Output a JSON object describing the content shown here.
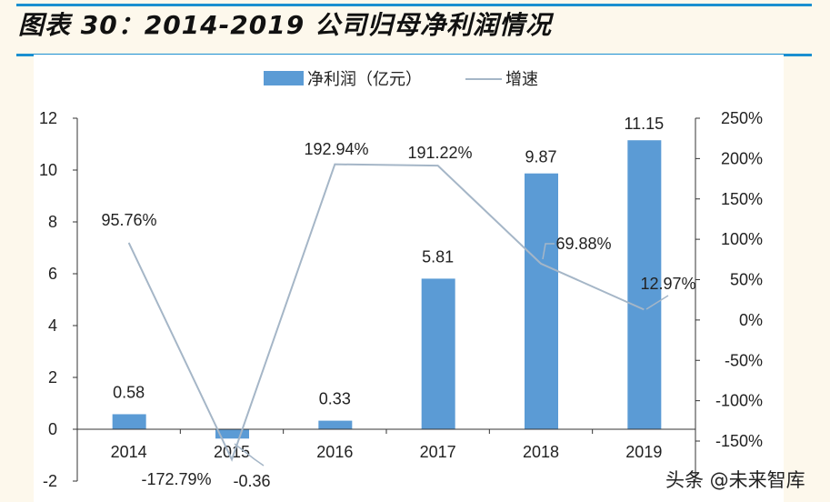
{
  "title": "图表 30：2014-2019 公司归母净利润情况",
  "watermark": "头条 @未来智库",
  "chart_data": {
    "type": "bar+line",
    "categories": [
      "2014",
      "2015",
      "2016",
      "2017",
      "2018",
      "2019"
    ],
    "series": [
      {
        "name": "净利润（亿元）",
        "type": "bar",
        "axis": "left",
        "color": "#5b9bd5",
        "values": [
          0.58,
          -0.36,
          0.33,
          5.81,
          9.87,
          11.15
        ],
        "labels": [
          "0.58",
          "-0.36",
          "0.33",
          "5.81",
          "9.87",
          "11.15"
        ]
      },
      {
        "name": "增速",
        "type": "line",
        "axis": "right",
        "color": "#a5b6c7",
        "values": [
          95.76,
          -172.79,
          192.94,
          191.22,
          69.88,
          12.97
        ],
        "labels": [
          "95.76%",
          "-172.79%",
          "192.94%",
          "191.22%",
          "69.88%",
          "12.97%"
        ]
      }
    ],
    "y_left": {
      "range": [
        -2,
        12
      ],
      "ticks": [
        "-2",
        "0",
        "2",
        "4",
        "6",
        "8",
        "10",
        "12"
      ]
    },
    "y_right": {
      "range": [
        -150,
        250
      ],
      "unit": "%",
      "ticks": [
        "-150%",
        "-100%",
        "-50%",
        "0%",
        "50%",
        "100%",
        "150%",
        "200%",
        "250%"
      ]
    },
    "legend": "top",
    "grid": false
  }
}
